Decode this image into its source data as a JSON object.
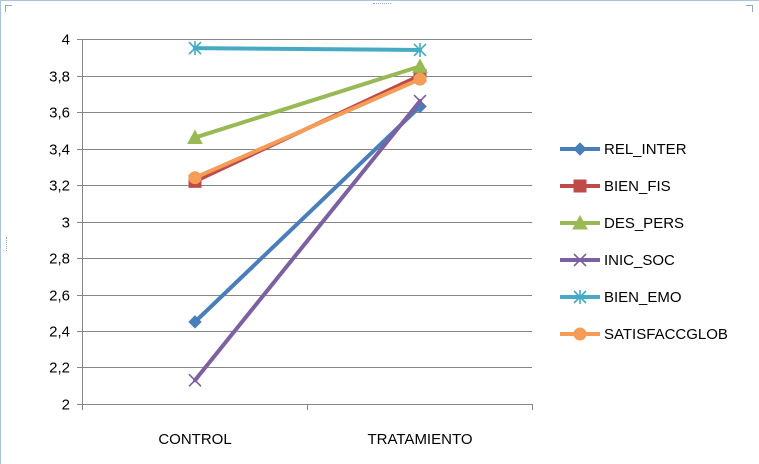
{
  "chart_data": {
    "type": "line",
    "title": "",
    "xlabel": "",
    "ylabel": "",
    "categories": [
      "CONTROL",
      "TRATAMIENTO"
    ],
    "ylim": [
      2,
      4
    ],
    "y_ticks": [
      "2",
      "2,2",
      "2,4",
      "2,6",
      "2,8",
      "3",
      "3,2",
      "3,4",
      "3,6",
      "3,8",
      "4"
    ],
    "grid": true,
    "legend_position": "right",
    "series": [
      {
        "name": "REL_INTER",
        "values": [
          2.45,
          3.63
        ],
        "color": "#4a7ebb",
        "marker": "diamond"
      },
      {
        "name": "BIEN_FIS",
        "values": [
          3.22,
          3.8
        ],
        "color": "#be4b48",
        "marker": "square"
      },
      {
        "name": "DES_PERS",
        "values": [
          3.46,
          3.85
        ],
        "color": "#98b954",
        "marker": "triangle"
      },
      {
        "name": "INIC_SOC",
        "values": [
          2.13,
          3.66
        ],
        "color": "#7d60a0",
        "marker": "x"
      },
      {
        "name": "BIEN_EMO",
        "values": [
          3.95,
          3.94
        ],
        "color": "#46aac5",
        "marker": "star"
      },
      {
        "name": "SATISFACCGLOB",
        "values": [
          3.24,
          3.78
        ],
        "color": "#f59d56",
        "marker": "circle"
      }
    ]
  }
}
